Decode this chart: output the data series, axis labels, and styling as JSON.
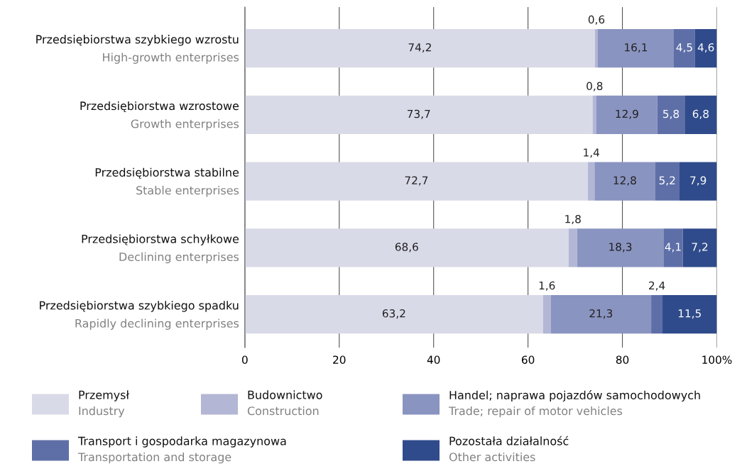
{
  "chart_data": {
    "type": "bar",
    "orientation": "horizontal",
    "stacked": true,
    "categories": [
      "Przedsiębiorstwa szybkiego wzrostu\nHigh-growth enterprises",
      "Przedsiębiorstwa wzrostowe\nGrowth enterprises",
      "Przedsiębiorstwa stabilne\nStable enterprises",
      "Przedsiębiorstwa schyłkowe\nDeclining enterprises",
      "Przedsiębiorstwa szybkiego spadku\nRapidly declining enterprises"
    ],
    "series": [
      {
        "name": "Przemysł\nIndustry",
        "color": "#d9dae8",
        "values": [
          74.2,
          73.7,
          72.7,
          68.6,
          63.2
        ],
        "value_labels": [
          "74,2",
          "73,7",
          "72,7",
          "68,6",
          "63,2"
        ]
      },
      {
        "name": "Budownictwo\nConstruction",
        "color": "#b3b6d4",
        "values": [
          0.6,
          0.8,
          1.4,
          1.8,
          1.6
        ],
        "value_labels": [
          "0,6",
          "0,8",
          "1,4",
          "1,8",
          "1,6"
        ]
      },
      {
        "name": "Handel; naprawa pojazdów samochodowych\nTrade; repair of motor vehicles",
        "color": "#8a94c1",
        "values": [
          16.1,
          12.9,
          12.8,
          18.3,
          21.3
        ],
        "value_labels": [
          "16,1",
          "12,9",
          "12,8",
          "18,3",
          "21,3"
        ]
      },
      {
        "name": "Transport i gospodarka magazynowa\nTransportation and storage",
        "color": "#5e6fa8",
        "values": [
          4.5,
          5.8,
          5.2,
          4.1,
          2.4
        ],
        "value_labels": [
          "4,5",
          "5,8",
          "5,2",
          "4,1",
          "2,4"
        ]
      },
      {
        "name": "Pozostała działalność\nOther activities",
        "color": "#2f4b8b",
        "values": [
          4.6,
          6.8,
          7.9,
          7.2,
          11.5
        ],
        "value_labels": [
          "4,6",
          "6,8",
          "7,9",
          "7,2",
          "11,5"
        ]
      }
    ],
    "xlim": [
      0,
      100
    ],
    "xticks": [
      0,
      20,
      40,
      60,
      80,
      {
        "value": 100,
        "label": "100%"
      }
    ],
    "grid": "x",
    "legend": "bottom"
  }
}
